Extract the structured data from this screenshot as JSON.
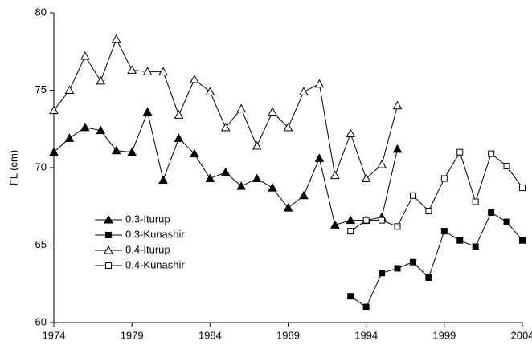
{
  "chart_data": {
    "type": "line",
    "y_label": "FL (cm)",
    "x": [
      1974,
      1975,
      1976,
      1977,
      1978,
      1979,
      1980,
      1981,
      1982,
      1983,
      1984,
      1985,
      1986,
      1987,
      1988,
      1989,
      1990,
      1991,
      1992,
      1993,
      1994,
      1995,
      1996,
      1997,
      1998,
      1999,
      2000,
      2001,
      2002,
      2003,
      2004
    ],
    "series": [
      {
        "name": "0.3-Iturup",
        "color": "#000000",
        "marker": "triangle",
        "filled": true,
        "values": [
          71.0,
          71.9,
          72.6,
          72.4,
          71.1,
          71.0,
          73.6,
          69.2,
          71.9,
          70.9,
          69.3,
          69.7,
          68.8,
          69.3,
          68.7,
          67.4,
          68.2,
          70.6,
          66.3,
          66.6,
          66.6,
          66.8,
          71.2,
          null,
          null,
          null,
          null,
          null,
          null,
          null,
          null
        ]
      },
      {
        "name": "0.3-Kunashir",
        "color": "#000000",
        "marker": "square",
        "filled": true,
        "values": [
          null,
          null,
          null,
          null,
          null,
          null,
          null,
          null,
          null,
          null,
          null,
          null,
          null,
          null,
          null,
          null,
          null,
          null,
          null,
          61.7,
          61.0,
          63.2,
          63.5,
          63.9,
          62.9,
          65.9,
          65.3,
          64.9,
          67.1,
          66.5,
          65.3
        ]
      },
      {
        "name": "0.4-Iturup",
        "color": "#000000",
        "marker": "triangle",
        "filled": false,
        "values": [
          73.7,
          75.0,
          77.2,
          75.6,
          78.3,
          76.3,
          76.2,
          76.2,
          73.4,
          75.7,
          74.9,
          72.6,
          73.8,
          71.4,
          73.6,
          72.6,
          74.9,
          75.4,
          69.5,
          72.2,
          69.3,
          70.2,
          74.0,
          null,
          null,
          null,
          null,
          null,
          null,
          null,
          null
        ]
      },
      {
        "name": "0.4-Kunashir",
        "color": "#000000",
        "marker": "square",
        "filled": false,
        "values": [
          null,
          null,
          null,
          null,
          null,
          null,
          null,
          null,
          null,
          null,
          null,
          null,
          null,
          null,
          null,
          null,
          null,
          null,
          null,
          65.9,
          66.6,
          66.6,
          66.2,
          68.2,
          67.2,
          69.3,
          71.0,
          67.8,
          70.9,
          70.1,
          68.7
        ]
      }
    ],
    "xlim": [
      1974,
      2004
    ],
    "xticks": [
      1974,
      1979,
      1984,
      1989,
      1994,
      1999,
      2004
    ],
    "ylim": [
      60,
      80
    ],
    "yticks": [
      60,
      65,
      70,
      75,
      80
    ],
    "grid": false,
    "legend_position": "left"
  }
}
